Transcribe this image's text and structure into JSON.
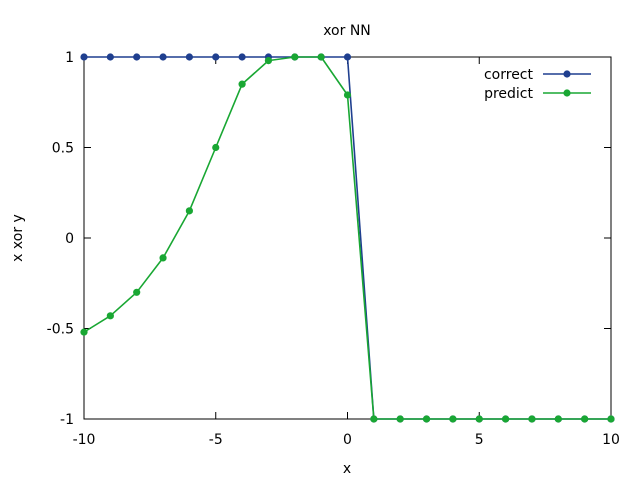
{
  "chart_data": {
    "type": "line",
    "title": "xor NN",
    "xlabel": "x",
    "ylabel": "x xor y",
    "xlim": [
      -10,
      10
    ],
    "ylim": [
      -1,
      1
    ],
    "xticks": [
      -10,
      -5,
      0,
      5,
      10
    ],
    "yticks": [
      -1,
      -0.5,
      0,
      0.5,
      1
    ],
    "xtick_labels": [
      "-10",
      "-5",
      "0",
      "5",
      "10"
    ],
    "ytick_labels": [
      "-1",
      "-0.5",
      "0",
      "0.5",
      "1"
    ],
    "grid": false,
    "legend_position": "top-right",
    "x": [
      -10,
      -9,
      -8,
      -7,
      -6,
      -5,
      -4,
      -3,
      -2,
      -1,
      0,
      1,
      2,
      3,
      4,
      5,
      6,
      7,
      8,
      9,
      10
    ],
    "series": [
      {
        "name": "correct",
        "color": "#1f3f8f",
        "values": [
          1,
          1,
          1,
          1,
          1,
          1,
          1,
          1,
          1,
          1,
          1,
          -1,
          -1,
          -1,
          -1,
          -1,
          -1,
          -1,
          -1,
          -1,
          -1
        ]
      },
      {
        "name": "predict",
        "color": "#19a733",
        "values": [
          -0.52,
          -0.43,
          -0.3,
          -0.11,
          0.15,
          0.5,
          0.85,
          0.98,
          1.0,
          1.0,
          0.79,
          -1,
          -1,
          -1,
          -1,
          -1,
          -1,
          -1,
          -1,
          -1,
          -1
        ]
      }
    ]
  }
}
